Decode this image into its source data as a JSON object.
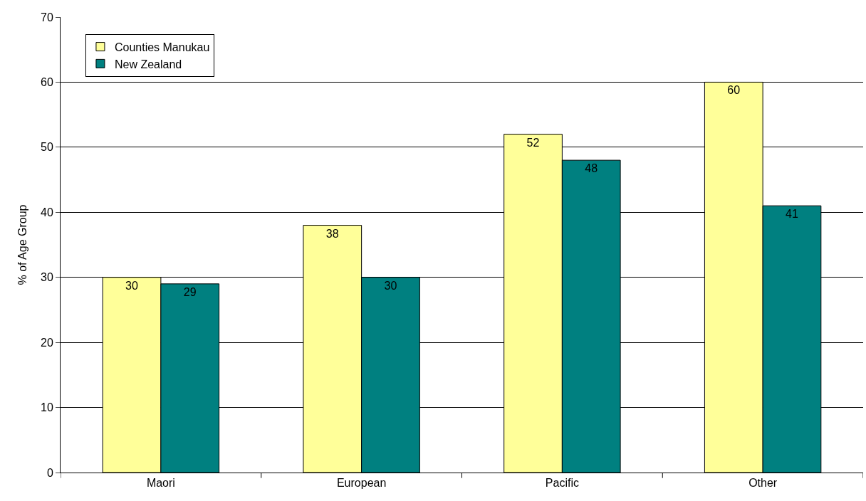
{
  "chart_data": {
    "type": "bar",
    "ylabel": "% of Age Group",
    "categories": [
      "Maori",
      "European",
      "Pacific",
      "Other"
    ],
    "series": [
      {
        "name": "Counties Manukau",
        "color": "#ffff99",
        "values": [
          30,
          38,
          52,
          60
        ]
      },
      {
        "name": "New Zealand",
        "color": "#008080",
        "values": [
          29,
          30,
          48,
          41
        ]
      }
    ],
    "ylim": [
      0,
      70
    ],
    "yticks": [
      0,
      10,
      20,
      30,
      40,
      50,
      60,
      70
    ],
    "grid": "y",
    "legend": "top left",
    "data_labels": true
  }
}
